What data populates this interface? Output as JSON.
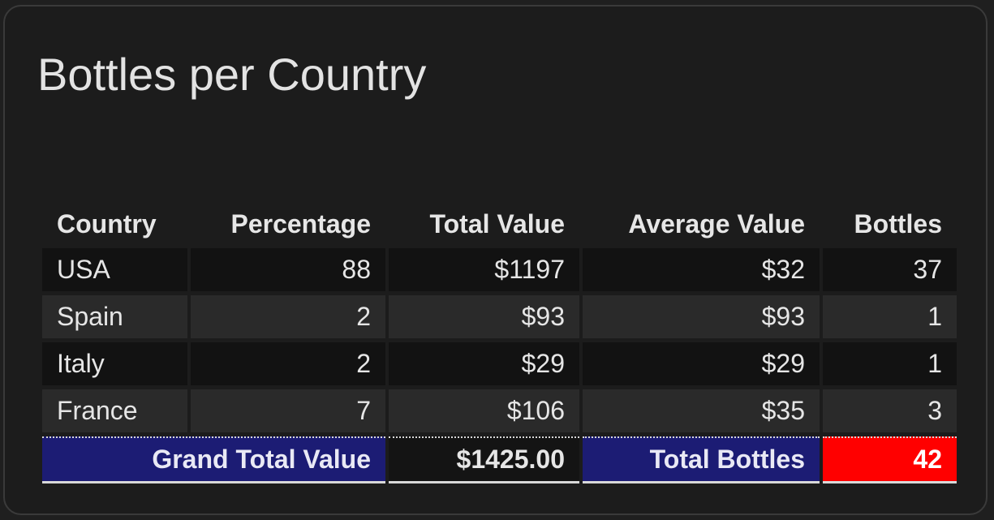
{
  "card": {
    "title": "Bottles per Country"
  },
  "table": {
    "headers": {
      "country": "Country",
      "percentage": "Percentage",
      "total_value": "Total Value",
      "average_value": "Average Value",
      "bottles": "Bottles"
    },
    "rows": [
      {
        "country": "USA",
        "percentage": "88",
        "total_value": "$1197",
        "average_value": "$32",
        "bottles": "37"
      },
      {
        "country": "Spain",
        "percentage": "2",
        "total_value": "$93",
        "average_value": "$93",
        "bottles": "1"
      },
      {
        "country": "Italy",
        "percentage": "2",
        "total_value": "$29",
        "average_value": "$29",
        "bottles": "1"
      },
      {
        "country": "France",
        "percentage": "7",
        "total_value": "$106",
        "average_value": "$35",
        "bottles": "3"
      }
    ],
    "totals": {
      "grand_total_label": "Grand Total Value",
      "grand_total_value": "$1425.00",
      "total_bottles_label": "Total Bottles",
      "total_bottles_value": "42"
    }
  },
  "colors": {
    "card_background": "#1c1c1c",
    "row_dark": "#121212",
    "row_light": "#2a2a2a",
    "total_label_background": "#1c1c74",
    "total_bottles_highlight": "#ff0000"
  }
}
